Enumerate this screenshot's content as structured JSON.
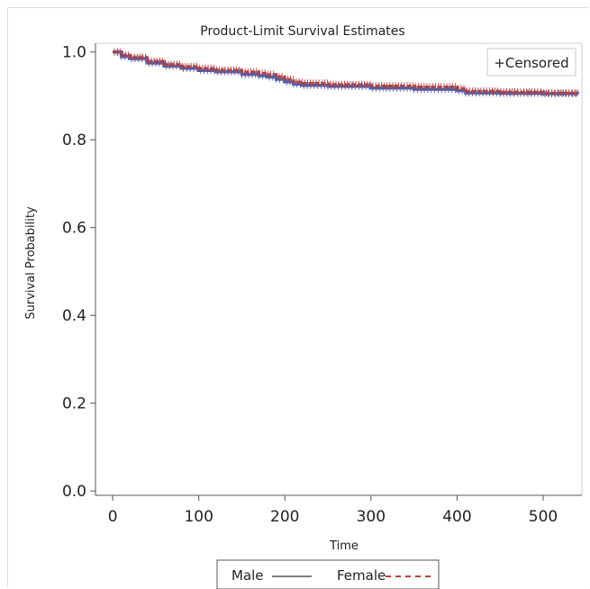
{
  "chart_data": {
    "type": "line",
    "title": "Product-Limit Survival Estimates",
    "xlabel": "Time",
    "ylabel": "Survival Probability",
    "xlim": [
      -20,
      545
    ],
    "ylim": [
      -0.01,
      1.02
    ],
    "x_ticks": [
      0,
      100,
      200,
      300,
      400,
      500
    ],
    "y_ticks": [
      0.0,
      0.2,
      0.4,
      0.6,
      0.8,
      1.0
    ],
    "x_tick_labels": [
      "0",
      "100",
      "200",
      "300",
      "400",
      "500"
    ],
    "y_tick_labels": [
      "0.0",
      "0.2",
      "0.4",
      "0.6",
      "0.8",
      "1.0"
    ],
    "inset_legend": "+Censored",
    "legend_position": "bottom",
    "grid": false,
    "series": [
      {
        "name": "Male",
        "color": "#4a63b8",
        "line_style": "solid",
        "x": [
          0,
          10,
          20,
          40,
          60,
          80,
          100,
          120,
          150,
          170,
          180,
          190,
          200,
          210,
          220,
          250,
          300,
          350,
          400,
          410,
          450,
          500,
          540
        ],
        "y": [
          1.0,
          0.99,
          0.985,
          0.975,
          0.968,
          0.963,
          0.958,
          0.955,
          0.949,
          0.946,
          0.943,
          0.938,
          0.932,
          0.927,
          0.924,
          0.922,
          0.918,
          0.915,
          0.912,
          0.907,
          0.906,
          0.905,
          0.904
        ]
      },
      {
        "name": "Female",
        "color": "#b5413c",
        "line_style": "dashed",
        "x": [
          0,
          10,
          20,
          40,
          60,
          80,
          100,
          120,
          150,
          170,
          180,
          190,
          200,
          210,
          220,
          250,
          300,
          350,
          400,
          410,
          450,
          500,
          540
        ],
        "y": [
          1.0,
          0.993,
          0.988,
          0.979,
          0.972,
          0.967,
          0.963,
          0.959,
          0.955,
          0.952,
          0.949,
          0.944,
          0.938,
          0.932,
          0.929,
          0.926,
          0.923,
          0.921,
          0.917,
          0.911,
          0.909,
          0.907,
          0.906
        ]
      }
    ]
  }
}
